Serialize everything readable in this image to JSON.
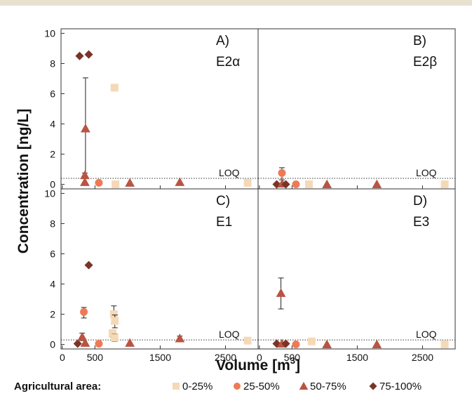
{
  "colors": {
    "topbar": "#e8e1d0",
    "frame": "#333333",
    "text": "#111111",
    "loq_line": "#333333",
    "cat_0_25": "#f5d9b6",
    "cat_25_50": "#ee7a55",
    "cat_50_75": "#b95442",
    "cat_75_100": "#7a3427"
  },
  "chart_data": {
    "type": "scatter",
    "ylabel": "Concentration [ng/L]",
    "xlabel_main": "Volume [m",
    "xlabel_sup": "3",
    "xlabel_tail": "]",
    "x_ticks": [
      "0",
      "500",
      "1500",
      "2500"
    ],
    "x_tick_values": [
      0,
      500,
      1500,
      2500
    ],
    "xlim": [
      -20,
      3000
    ],
    "loq_label": "LOQ",
    "grid": false,
    "legend_placement": "bottom",
    "legend": {
      "title": "Agricultural area:",
      "entries": [
        {
          "key": "cat_0_25",
          "label": "0-25%",
          "marker": "square"
        },
        {
          "key": "cat_25_50",
          "label": "25-50%",
          "marker": "circle"
        },
        {
          "key": "cat_50_75",
          "label": "50-75%",
          "marker": "triangle"
        },
        {
          "key": "cat_75_100",
          "label": "75-100%",
          "marker": "diamond"
        }
      ]
    },
    "panels": [
      {
        "id": "A",
        "letter": "A)",
        "compound": "E2α",
        "ylim": [
          -0.3,
          10.3
        ],
        "y_ticks": [
          0,
          2,
          4,
          6,
          8,
          10
        ],
        "loq": 0.4,
        "points": [
          {
            "x": 265,
            "y": 8.5,
            "cat": "cat_75_100"
          },
          {
            "x": 405,
            "y": 8.6,
            "cat": "cat_75_100"
          },
          {
            "x": 355,
            "y": 3.7,
            "cat": "cat_50_75",
            "err": [
              0.4,
              7.05
            ]
          },
          {
            "x": 345,
            "y": 0.6,
            "cat": "cat_50_75",
            "err": [
              0.45,
              0.75
            ]
          },
          {
            "x": 345,
            "y": 0.15,
            "cat": "cat_50_75"
          },
          {
            "x": 560,
            "y": 0.1,
            "cat": "cat_25_50"
          },
          {
            "x": 800,
            "y": 6.4,
            "cat": "cat_0_25"
          },
          {
            "x": 815,
            "y": 0.0,
            "cat": "cat_0_25"
          },
          {
            "x": 1035,
            "y": 0.1,
            "cat": "cat_50_75"
          },
          {
            "x": 1800,
            "y": 0.15,
            "cat": "cat_50_75"
          },
          {
            "x": 2840,
            "y": 0.1,
            "cat": "cat_0_25"
          }
        ]
      },
      {
        "id": "B",
        "letter": "B)",
        "compound": "E2β",
        "ylim": [
          -0.3,
          10.3
        ],
        "y_ticks": [],
        "loq": 0.4,
        "points": [
          {
            "x": 265,
            "y": 0.0,
            "cat": "cat_75_100"
          },
          {
            "x": 345,
            "y": 0.75,
            "cat": "cat_25_50",
            "err": [
              0.3,
              1.1
            ]
          },
          {
            "x": 350,
            "y": 0.05,
            "cat": "cat_50_75"
          },
          {
            "x": 405,
            "y": 0.0,
            "cat": "cat_75_100"
          },
          {
            "x": 560,
            "y": 0.0,
            "cat": "cat_25_50"
          },
          {
            "x": 760,
            "y": 0.0,
            "cat": "cat_0_25"
          },
          {
            "x": 1035,
            "y": 0.0,
            "cat": "cat_50_75"
          },
          {
            "x": 1800,
            "y": 0.0,
            "cat": "cat_50_75"
          },
          {
            "x": 2840,
            "y": 0.0,
            "cat": "cat_0_25"
          }
        ]
      },
      {
        "id": "C",
        "letter": "C)",
        "compound": "E1",
        "ylim": [
          -0.3,
          10.3
        ],
        "y_ticks": [
          0,
          2,
          4,
          6,
          8,
          10
        ],
        "loq": 0.3,
        "points": [
          {
            "x": 235,
            "y": 0.05,
            "cat": "cat_75_100"
          },
          {
            "x": 305,
            "y": 0.5,
            "cat": "cat_50_75",
            "err": [
              0.25,
              0.75
            ]
          },
          {
            "x": 330,
            "y": 2.15,
            "cat": "cat_25_50",
            "err": [
              1.75,
              2.45
            ]
          },
          {
            "x": 350,
            "y": 0.1,
            "cat": "cat_50_75"
          },
          {
            "x": 405,
            "y": 5.25,
            "cat": "cat_75_100"
          },
          {
            "x": 560,
            "y": 0.05,
            "cat": "cat_25_50"
          },
          {
            "x": 770,
            "y": 0.75,
            "cat": "cat_0_25",
            "err": [
              0.5,
              0.95
            ]
          },
          {
            "x": 790,
            "y": 2.0,
            "cat": "cat_0_25",
            "err": [
              1.4,
              2.55
            ]
          },
          {
            "x": 805,
            "y": 1.55,
            "cat": "cat_0_25",
            "err": [
              1.1,
              1.95
            ]
          },
          {
            "x": 800,
            "y": 0.45,
            "cat": "cat_0_25",
            "err": [
              0.2,
              0.7
            ]
          },
          {
            "x": 1035,
            "y": 0.1,
            "cat": "cat_50_75"
          },
          {
            "x": 1800,
            "y": 0.4,
            "cat": "cat_50_75",
            "err": [
              0.25,
              0.55
            ]
          },
          {
            "x": 2840,
            "y": 0.25,
            "cat": "cat_0_25"
          }
        ]
      },
      {
        "id": "D",
        "letter": "D)",
        "compound": "E3",
        "ylim": [
          -0.3,
          10.3
        ],
        "y_ticks": [],
        "loq": 0.3,
        "points": [
          {
            "x": 265,
            "y": 0.05,
            "cat": "cat_75_100"
          },
          {
            "x": 330,
            "y": 3.4,
            "cat": "cat_50_75",
            "err": [
              2.35,
              4.4
            ]
          },
          {
            "x": 345,
            "y": 0.05,
            "cat": "cat_50_75"
          },
          {
            "x": 405,
            "y": 0.05,
            "cat": "cat_75_100"
          },
          {
            "x": 560,
            "y": 0.0,
            "cat": "cat_25_50"
          },
          {
            "x": 800,
            "y": 0.2,
            "cat": "cat_0_25",
            "err": [
              0.05,
              0.35
            ]
          },
          {
            "x": 1035,
            "y": 0.0,
            "cat": "cat_50_75"
          },
          {
            "x": 1800,
            "y": 0.0,
            "cat": "cat_50_75"
          },
          {
            "x": 2840,
            "y": 0.0,
            "cat": "cat_0_25"
          }
        ]
      }
    ]
  }
}
